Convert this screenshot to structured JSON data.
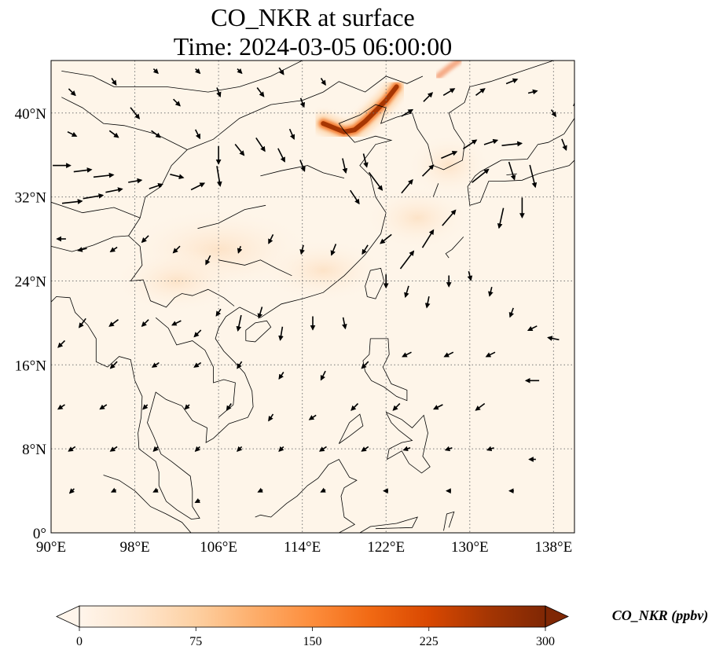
{
  "title_line1": "CO_NKR at surface",
  "title_line2": "Time: 2024-03-05 06:00:00",
  "map": {
    "lon_range": [
      90,
      140
    ],
    "lat_range": [
      0,
      45
    ],
    "lon_ticks": [
      "90°E",
      "98°E",
      "106°E",
      "114°E",
      "122°E",
      "130°E",
      "138°E"
    ],
    "lon_tick_values": [
      90,
      98,
      106,
      114,
      122,
      130,
      138
    ],
    "lat_ticks": [
      "0°",
      "8°N",
      "16°N",
      "24°N",
      "32°N",
      "40°N"
    ],
    "lat_tick_values": [
      0,
      8,
      16,
      24,
      32,
      40
    ],
    "gridlines": "dotted",
    "field_colors": {
      "background": "#fef5e9",
      "low": "#fde7cc",
      "mid": "#f08a5a",
      "high": "#a3120c",
      "max": "#7f0000"
    }
  },
  "colorbar": {
    "label": "CO_NKR (ppbv)",
    "ticks": [
      "0",
      "75",
      "150",
      "225",
      "300"
    ],
    "tick_values": [
      0,
      75,
      150,
      225,
      300
    ],
    "range": [
      0,
      300
    ],
    "extend": "both",
    "stops": [
      "#fff5eb",
      "#fee6ce",
      "#fdd0a2",
      "#fdae6b",
      "#fd8d3c",
      "#f16913",
      "#d94801",
      "#a63603",
      "#7f2704"
    ]
  },
  "chart_data": {
    "type": "heatmap",
    "variable": "CO_NKR",
    "units": "ppbv",
    "plume": {
      "description_lonlat": [
        [
          116,
          39
        ],
        [
          117,
          38.6
        ],
        [
          118,
          38.2
        ],
        [
          119,
          38.4
        ],
        [
          120,
          39.2
        ],
        [
          121,
          40.2
        ],
        [
          122,
          41.2
        ],
        [
          123,
          42.5
        ]
      ],
      "peak_value": 300
    },
    "secondary_plume": [
      [
        127,
        43.5
      ],
      [
        128,
        44.3
      ],
      [
        129,
        45
      ]
    ],
    "wind_vectors_lonlat_uv": [
      [
        91,
        35,
        1.6,
        0
      ],
      [
        93,
        34.5,
        1.6,
        0.2
      ],
      [
        95,
        34,
        1.8,
        0.2
      ],
      [
        92,
        31.5,
        1.8,
        0.2
      ],
      [
        94,
        32,
        1.8,
        0.3
      ],
      [
        96,
        32.6,
        1.5,
        0.3
      ],
      [
        98,
        33.5,
        1.2,
        0.2
      ],
      [
        100,
        33,
        1.2,
        0.4
      ],
      [
        102,
        34,
        1.2,
        -0.3
      ],
      [
        104,
        33,
        1.2,
        0.6
      ],
      [
        106,
        34,
        0.3,
        -1.8
      ],
      [
        106,
        36,
        0,
        -1.6
      ],
      [
        108,
        36.5,
        0.8,
        -1.0
      ],
      [
        110,
        37,
        0.8,
        -1.2
      ],
      [
        112,
        36,
        0.6,
        -1.2
      ],
      [
        113,
        38,
        0.4,
        -0.9
      ],
      [
        114,
        35,
        0.4,
        -1.0
      ],
      [
        118,
        35,
        0.3,
        -1.3
      ],
      [
        120,
        35.5,
        0.3,
        -1.2
      ],
      [
        121,
        33.5,
        1.2,
        -1.6
      ],
      [
        119,
        32,
        0.8,
        -1.2
      ],
      [
        124,
        33,
        1.0,
        1.2
      ],
      [
        126,
        34.5,
        1.0,
        1.0
      ],
      [
        128,
        36,
        1.4,
        0.6
      ],
      [
        130,
        37,
        1.2,
        0.8
      ],
      [
        132,
        37.2,
        1.2,
        0.4
      ],
      [
        134,
        37,
        1.8,
        0.2
      ],
      [
        131,
        34,
        1.5,
        1.2
      ],
      [
        134,
        34.5,
        0.5,
        -1.6
      ],
      [
        136,
        34,
        0.5,
        -2.0
      ],
      [
        135,
        31,
        0,
        -1.8
      ],
      [
        133,
        30,
        -0.4,
        -1.8
      ],
      [
        128,
        30,
        1.2,
        1.4
      ],
      [
        126,
        28,
        1.0,
        1.6
      ],
      [
        124,
        26,
        1.2,
        1.6
      ],
      [
        122,
        28,
        -1.0,
        -0.8
      ],
      [
        120,
        27,
        -0.5,
        -0.8
      ],
      [
        117,
        27,
        -0.4,
        -1.0
      ],
      [
        114,
        27,
        -0.2,
        -0.8
      ],
      [
        111,
        28,
        -0.4,
        -0.8
      ],
      [
        108,
        27,
        -0.2,
        -0.6
      ],
      [
        105,
        26,
        -0.4,
        -0.8
      ],
      [
        102,
        27,
        -0.6,
        -0.6
      ],
      [
        99,
        28,
        -0.6,
        -0.6
      ],
      [
        96,
        27,
        -0.6,
        -0.4
      ],
      [
        93,
        27,
        -0.8,
        -0.2
      ],
      [
        91,
        28,
        -0.8,
        0
      ],
      [
        122,
        24,
        0,
        -1.2
      ],
      [
        124,
        23,
        -0.3,
        -1.0
      ],
      [
        126,
        22,
        -0.2,
        -1.0
      ],
      [
        128,
        24,
        0,
        -1.0
      ],
      [
        130,
        24.5,
        0.2,
        -0.8
      ],
      [
        132,
        23,
        -0.2,
        -0.8
      ],
      [
        134,
        21,
        -0.3,
        -0.8
      ],
      [
        136,
        19.5,
        -0.8,
        -0.4
      ],
      [
        138,
        18.5,
        -1.0,
        0.2
      ],
      [
        118,
        20,
        0.2,
        -1.0
      ],
      [
        115,
        20,
        0,
        -1.2
      ],
      [
        112,
        19,
        -0.2,
        -1.2
      ],
      [
        110,
        21,
        -0.3,
        -1.0
      ],
      [
        108,
        20,
        -0.3,
        -1.4
      ],
      [
        106,
        21,
        -0.4,
        -0.6
      ],
      [
        104,
        19,
        -0.6,
        -0.6
      ],
      [
        102,
        20,
        -0.8,
        -0.4
      ],
      [
        99,
        20,
        -0.6,
        -0.6
      ],
      [
        96,
        20,
        -0.8,
        -0.6
      ],
      [
        93,
        20,
        -0.6,
        -0.8
      ],
      [
        91,
        18,
        -0.6,
        -0.6
      ],
      [
        96,
        16,
        -0.6,
        -0.6
      ],
      [
        100,
        16,
        -0.6,
        -0.4
      ],
      [
        104,
        16,
        -0.6,
        -0.4
      ],
      [
        108,
        16,
        -0.4,
        -0.6
      ],
      [
        112,
        15,
        -0.4,
        -0.6
      ],
      [
        116,
        15,
        -0.4,
        -0.8
      ],
      [
        120,
        16,
        -0.6,
        -0.6
      ],
      [
        124,
        17,
        -0.8,
        -0.4
      ],
      [
        128,
        17,
        -0.8,
        -0.4
      ],
      [
        132,
        17,
        -0.8,
        -0.4
      ],
      [
        136,
        14.5,
        -1.2,
        0
      ],
      [
        131,
        12,
        -0.8,
        -0.6
      ],
      [
        127,
        12,
        -0.8,
        -0.4
      ],
      [
        123,
        12,
        -0.6,
        -0.6
      ],
      [
        119,
        12,
        -0.6,
        -0.6
      ],
      [
        115,
        11,
        -0.6,
        -0.4
      ],
      [
        111,
        11,
        -0.4,
        -0.6
      ],
      [
        107,
        12,
        -0.4,
        -0.6
      ],
      [
        103,
        12,
        -0.4,
        -0.4
      ],
      [
        99,
        12,
        -0.4,
        -0.4
      ],
      [
        95,
        12,
        -0.6,
        -0.4
      ],
      [
        91,
        12,
        -0.6,
        -0.4
      ],
      [
        92,
        8,
        -0.6,
        -0.4
      ],
      [
        96,
        8,
        -0.6,
        -0.4
      ],
      [
        100,
        8,
        -0.4,
        -0.4
      ],
      [
        104,
        8,
        -0.4,
        -0.4
      ],
      [
        108,
        8,
        -0.4,
        -0.4
      ],
      [
        112,
        8,
        -0.4,
        -0.4
      ],
      [
        116,
        8,
        -0.6,
        -0.4
      ],
      [
        120,
        8,
        -0.6,
        -0.4
      ],
      [
        124,
        8,
        -0.6,
        -0.2
      ],
      [
        128,
        8,
        -0.6,
        -0.2
      ],
      [
        132,
        8,
        -0.6,
        -0.2
      ],
      [
        136,
        7,
        -0.6,
        0
      ],
      [
        92,
        4,
        -0.4,
        -0.4
      ],
      [
        96,
        4,
        -0.4,
        -0.2
      ],
      [
        100,
        4,
        -0.4,
        -0.2
      ],
      [
        104,
        3,
        -0.4,
        -0.2
      ],
      [
        110,
        4,
        -0.4,
        -0.2
      ],
      [
        116,
        4,
        -0.4,
        -0.2
      ],
      [
        122,
        4,
        -0.4,
        0
      ],
      [
        128,
        4,
        -0.4,
        0
      ],
      [
        134,
        4,
        -0.4,
        0
      ],
      [
        98,
        40,
        0.8,
        -1.0
      ],
      [
        102,
        41,
        0.6,
        -0.6
      ],
      [
        106,
        42,
        0.3,
        -0.8
      ],
      [
        110,
        42,
        0.6,
        -0.8
      ],
      [
        114,
        41,
        0.3,
        -0.8
      ],
      [
        92,
        42,
        0.6,
        -0.6
      ],
      [
        96,
        43,
        0.4,
        -0.6
      ],
      [
        100,
        44,
        0.4,
        -0.4
      ],
      [
        104,
        44,
        0.4,
        -0.4
      ],
      [
        108,
        44,
        0.4,
        -0.4
      ],
      [
        112,
        44,
        0.4,
        -0.6
      ],
      [
        116,
        43,
        0.4,
        -0.6
      ],
      [
        124,
        40,
        1.0,
        0.6
      ],
      [
        126,
        41.5,
        0.8,
        0.8
      ],
      [
        128,
        42,
        1.0,
        0.6
      ],
      [
        131,
        42,
        0.8,
        0.6
      ],
      [
        134,
        43,
        1.0,
        0.4
      ],
      [
        136,
        42,
        0.8,
        0.2
      ],
      [
        138,
        40,
        0.4,
        -0.6
      ],
      [
        139,
        37,
        0.4,
        -1.0
      ],
      [
        96,
        38,
        0.8,
        -0.6
      ],
      [
        100,
        38,
        0.8,
        -0.6
      ],
      [
        104,
        38,
        0.4,
        -0.8
      ],
      [
        92,
        38,
        0.8,
        -0.4
      ]
    ]
  }
}
